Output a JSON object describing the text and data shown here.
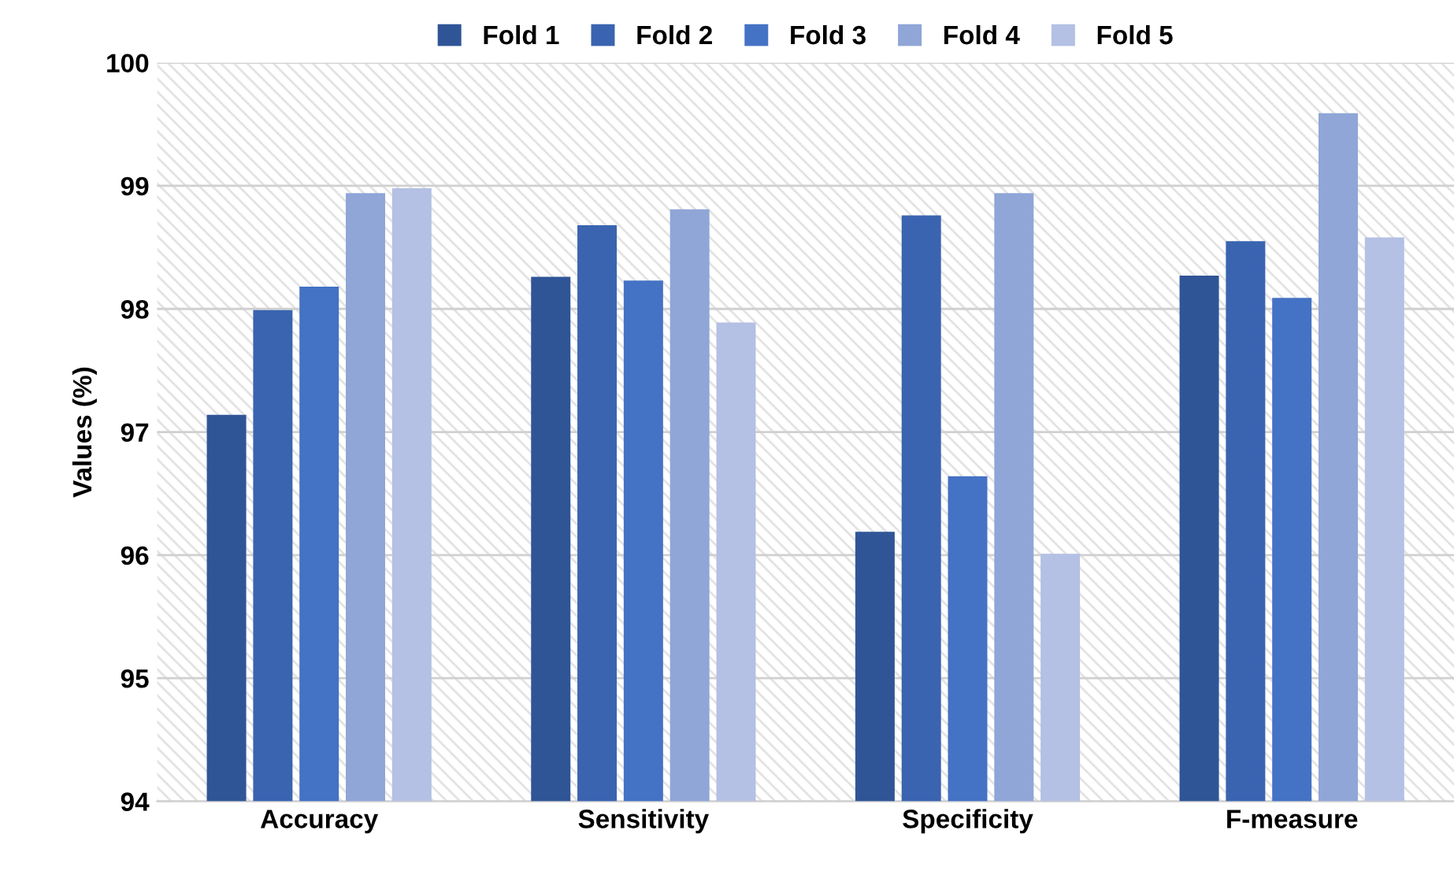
{
  "chart_data": {
    "type": "bar",
    "ylabel": "Values (%)",
    "categories": [
      "Accuracy",
      "Sensitivity",
      "Specificity",
      "F-measure"
    ],
    "series": [
      {
        "name": "Fold 1",
        "color": "#2f5597",
        "values": [
          97.14,
          98.26,
          96.19,
          98.27
        ]
      },
      {
        "name": "Fold 2",
        "color": "#3a64b0",
        "values": [
          97.99,
          98.68,
          98.76,
          98.55
        ]
      },
      {
        "name": "Fold 3",
        "color": "#4472c4",
        "values": [
          98.18,
          98.23,
          96.64,
          98.09
        ]
      },
      {
        "name": "Fold 4",
        "color": "#8fa6d6",
        "values": [
          98.94,
          98.81,
          98.94,
          99.59
        ]
      },
      {
        "name": "Fold 5",
        "color": "#b4c0e4",
        "values": [
          98.98,
          97.89,
          96.01,
          98.58
        ]
      }
    ],
    "ylim": [
      94,
      100
    ],
    "yticks": [
      94,
      95,
      96,
      97,
      98,
      99,
      100
    ],
    "grid": "y",
    "legend": "top"
  }
}
